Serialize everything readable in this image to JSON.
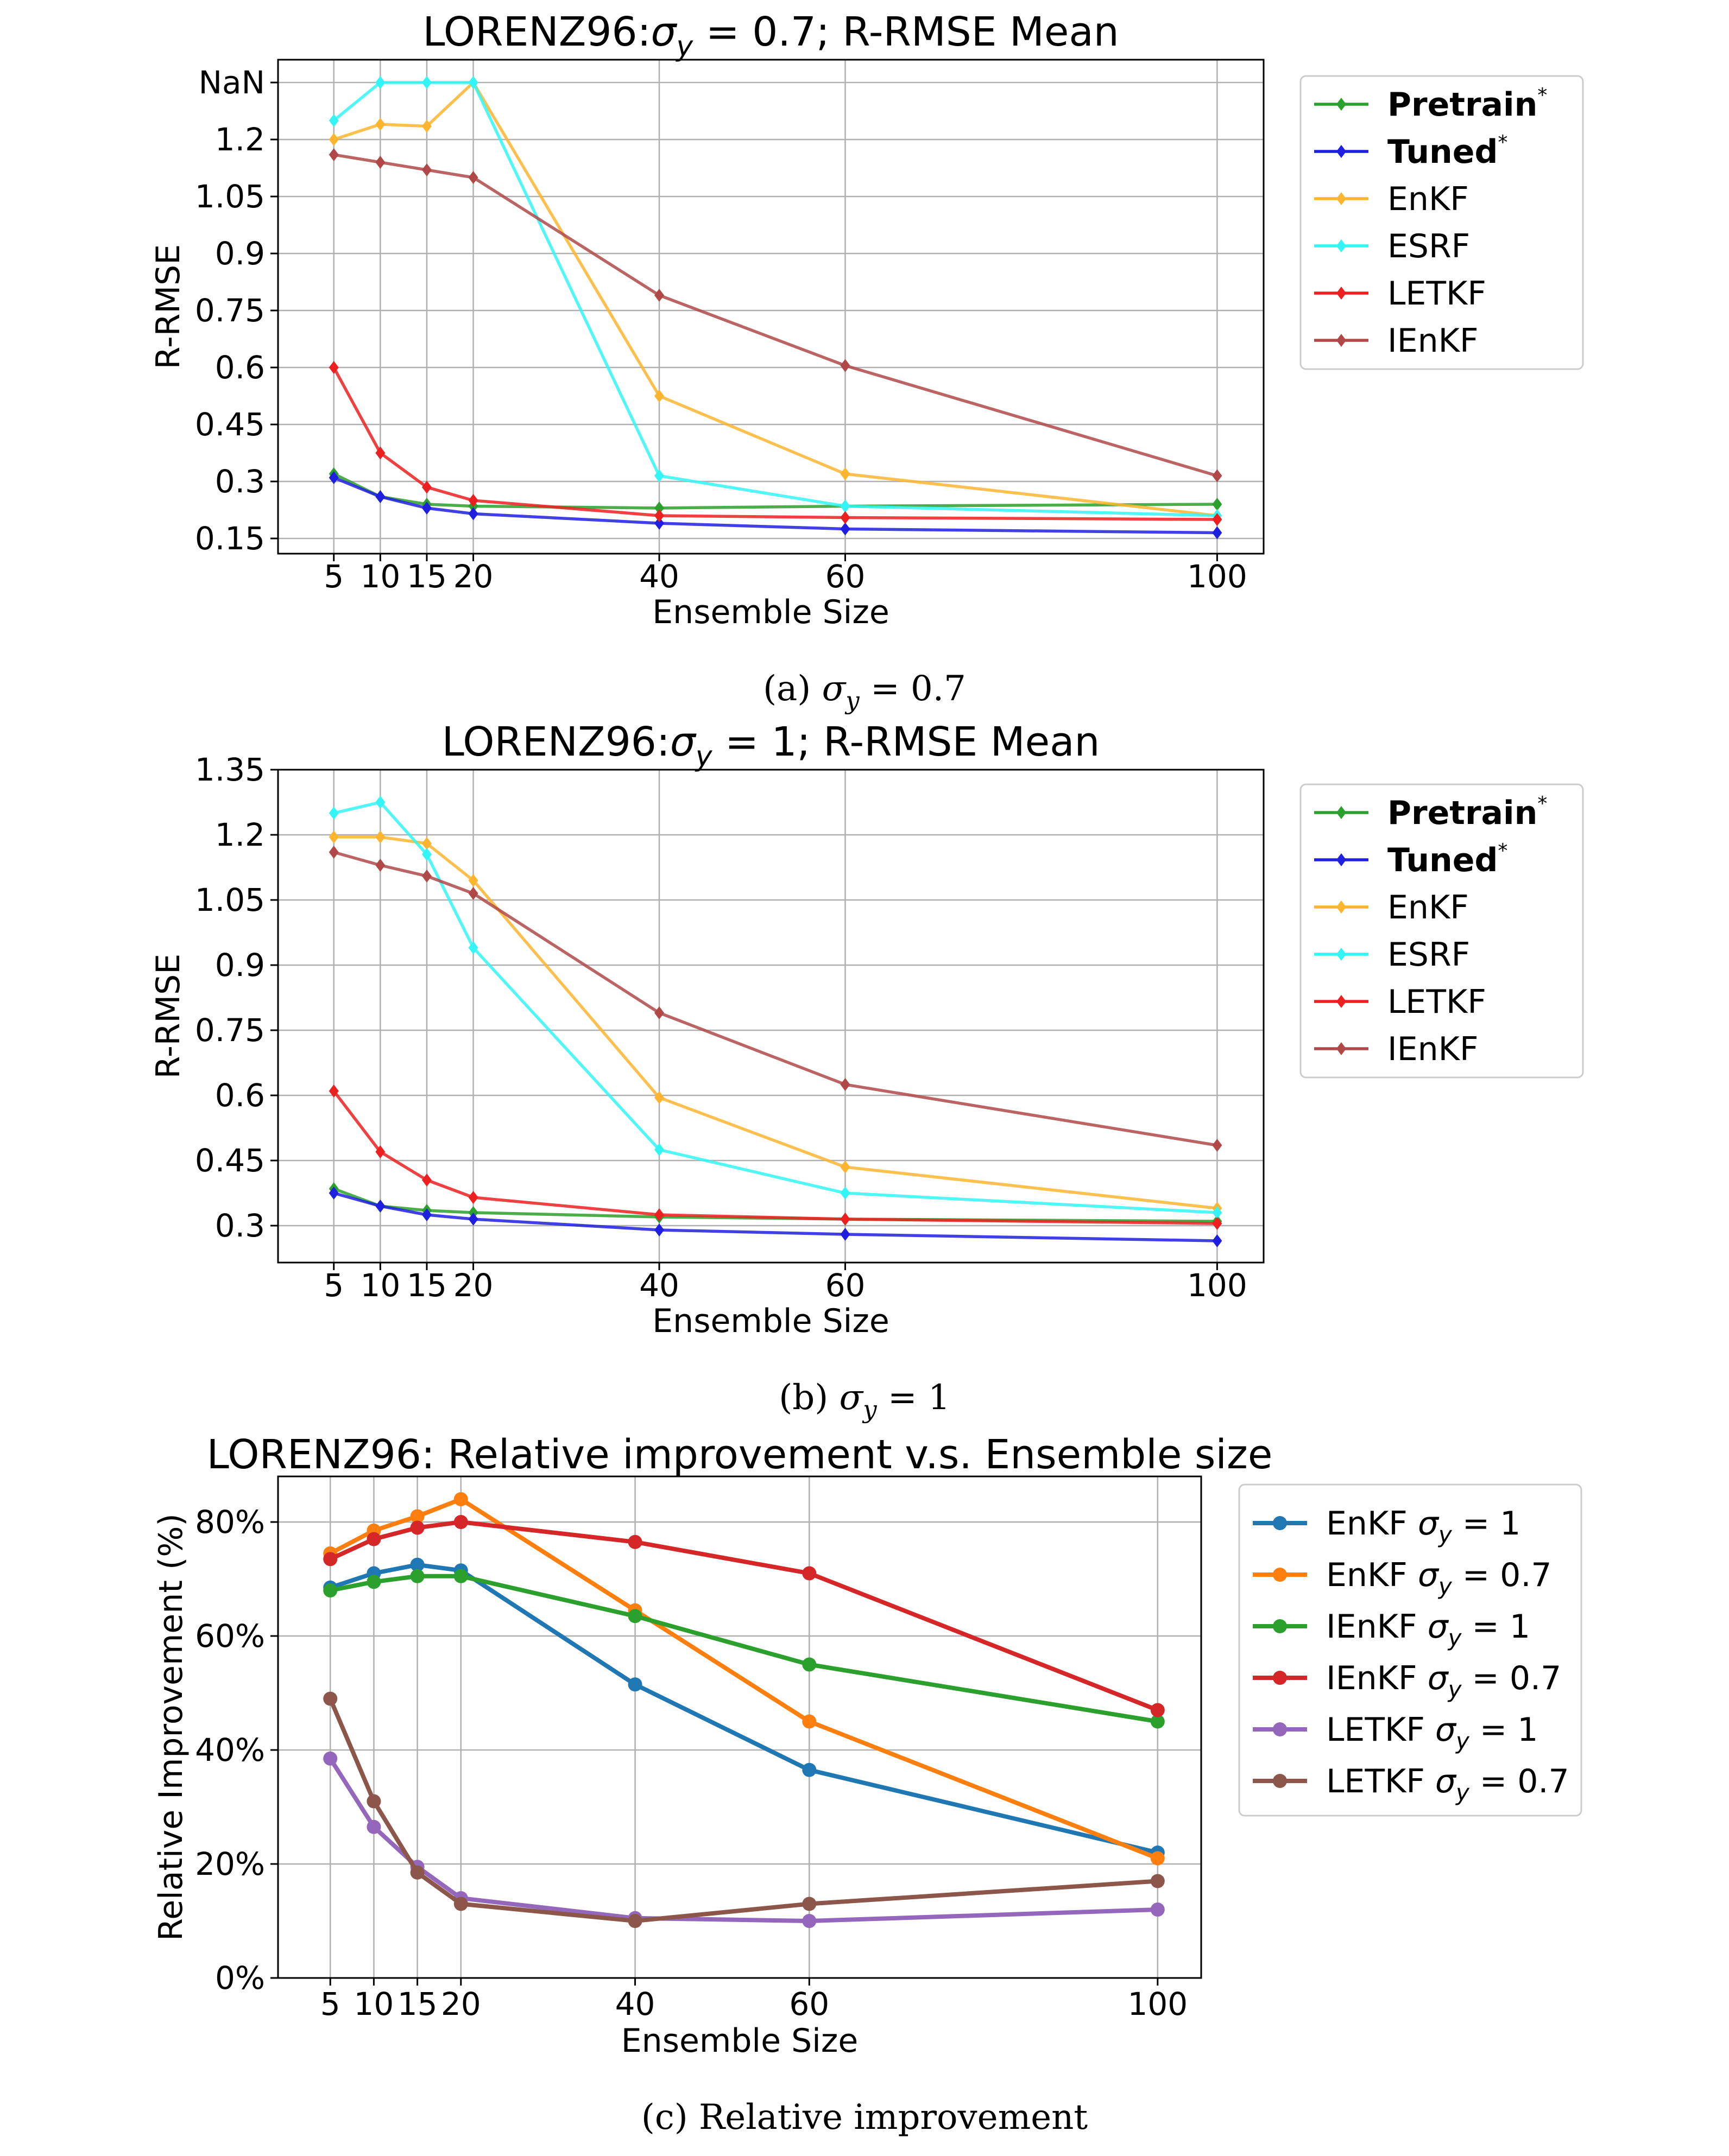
{
  "colors": {
    "pretrain": "#2ca02c",
    "tuned": "#1f1fe0",
    "enkf": "#fdb52f",
    "esrf": "#33f5f5",
    "letkf": "#ec2020",
    "ienkf": "#b04848",
    "c_blue": "#1f77b4",
    "c_orange": "#ff7f0e",
    "c_green": "#2ca02c",
    "c_red": "#d62728",
    "c_purple": "#9467bd",
    "c_brown": "#8c564b"
  },
  "chart_data": [
    {
      "id": "a",
      "type": "line",
      "title": "LORENZ96:σ_y = 0.7; R-RMSE Mean",
      "title_parts": [
        "LORENZ96:",
        "σ",
        "y",
        " = 0.7; R-RMSE Mean"
      ],
      "caption": "(a) σ_y = 0.7",
      "caption_parts": [
        "(a) ",
        "σ",
        "y",
        " = 0.7"
      ],
      "xlabel": "Ensemble Size",
      "ylabel": "R-RMSE",
      "x": [
        5,
        10,
        15,
        20,
        40,
        60,
        100
      ],
      "xlim": [
        -1,
        105
      ],
      "ylim": [
        0.11,
        1.41
      ],
      "yticks": [
        0.15,
        0.3,
        0.45,
        0.6,
        0.75,
        0.9,
        1.05,
        1.2,
        1.35
      ],
      "ytick_labels": [
        "0.15",
        "0.3",
        "0.45",
        "0.6",
        "0.75",
        "0.9",
        "1.05",
        "1.2",
        "NaN"
      ],
      "series": [
        {
          "name": "Pretrain",
          "sup": "*",
          "bold": true,
          "color_key": "pretrain",
          "marker": "diamond",
          "values": [
            0.32,
            0.26,
            0.24,
            0.235,
            0.23,
            0.235,
            0.24
          ]
        },
        {
          "name": "Tuned",
          "sup": "*",
          "bold": true,
          "color_key": "tuned",
          "marker": "diamond",
          "values": [
            0.31,
            0.26,
            0.23,
            0.215,
            0.19,
            0.175,
            0.165
          ]
        },
        {
          "name": "EnKF",
          "color_key": "enkf",
          "marker": "diamond",
          "values": [
            1.2,
            1.24,
            1.235,
            1.35,
            0.525,
            0.32,
            0.21
          ]
        },
        {
          "name": "ESRF",
          "color_key": "esrf",
          "marker": "diamond",
          "values": [
            1.25,
            1.35,
            1.35,
            1.35,
            0.315,
            0.235,
            0.21
          ]
        },
        {
          "name": "LETKF",
          "color_key": "letkf",
          "marker": "diamond",
          "values": [
            0.6,
            0.375,
            0.285,
            0.25,
            0.21,
            0.205,
            0.2
          ]
        },
        {
          "name": "IEnKF",
          "color_key": "ienkf",
          "marker": "diamond",
          "values": [
            1.16,
            1.14,
            1.12,
            1.1,
            0.79,
            0.605,
            0.315
          ]
        }
      ]
    },
    {
      "id": "b",
      "type": "line",
      "title": "LORENZ96:σ_y = 1; R-RMSE Mean",
      "title_parts": [
        "LORENZ96:",
        "σ",
        "y",
        " = 1; R-RMSE Mean"
      ],
      "caption": "(b) σ_y = 1",
      "caption_parts": [
        "(b) ",
        "σ",
        "y",
        " = 1"
      ],
      "xlabel": "Ensemble Size",
      "ylabel": "R-RMSE",
      "x": [
        5,
        10,
        15,
        20,
        40,
        60,
        100
      ],
      "xlim": [
        -1,
        105
      ],
      "ylim": [
        0.215,
        1.35
      ],
      "yticks": [
        0.3,
        0.45,
        0.6,
        0.75,
        0.9,
        1.05,
        1.2,
        1.35
      ],
      "ytick_labels": [
        "0.3",
        "0.45",
        "0.6",
        "0.75",
        "0.9",
        "1.05",
        "1.2",
        "1.35"
      ],
      "series": [
        {
          "name": "Pretrain",
          "sup": "*",
          "bold": true,
          "color_key": "pretrain",
          "marker": "diamond",
          "values": [
            0.385,
            0.345,
            0.335,
            0.33,
            0.32,
            0.315,
            0.31
          ]
        },
        {
          "name": "Tuned",
          "sup": "*",
          "bold": true,
          "color_key": "tuned",
          "marker": "diamond",
          "values": [
            0.375,
            0.345,
            0.325,
            0.315,
            0.29,
            0.28,
            0.265
          ]
        },
        {
          "name": "EnKF",
          "color_key": "enkf",
          "marker": "diamond",
          "values": [
            1.195,
            1.195,
            1.18,
            1.095,
            0.595,
            0.435,
            0.34
          ]
        },
        {
          "name": "ESRF",
          "color_key": "esrf",
          "marker": "diamond",
          "values": [
            1.25,
            1.275,
            1.155,
            0.94,
            0.475,
            0.375,
            0.33
          ]
        },
        {
          "name": "LETKF",
          "color_key": "letkf",
          "marker": "diamond",
          "values": [
            0.61,
            0.47,
            0.405,
            0.365,
            0.325,
            0.315,
            0.305
          ]
        },
        {
          "name": "IEnKF",
          "color_key": "ienkf",
          "marker": "diamond",
          "values": [
            1.16,
            1.13,
            1.105,
            1.065,
            0.79,
            0.625,
            0.485
          ]
        }
      ]
    },
    {
      "id": "c",
      "type": "line",
      "title": "LORENZ96: Relative improvement v.s. Ensemble size",
      "title_parts": [
        "LORENZ96: Relative improvement v.s. Ensemble size"
      ],
      "caption": "(c) Relative improvement",
      "caption_parts": [
        "(c) Relative improvement"
      ],
      "xlabel": "Ensemble Size",
      "ylabel": "Relative Improvement (%)",
      "x": [
        5,
        10,
        15,
        20,
        40,
        60,
        100
      ],
      "xlim": [
        -1,
        105
      ],
      "ylim": [
        0,
        88
      ],
      "yticks": [
        0,
        20,
        40,
        60,
        80
      ],
      "ytick_labels": [
        "0%",
        "20%",
        "40%",
        "60%",
        "80%"
      ],
      "series": [
        {
          "name": "EnKF σ_y = 1",
          "label_parts": [
            "EnKF ",
            "σ",
            "y",
            " = 1"
          ],
          "color_key": "c_blue",
          "marker": "circle",
          "values": [
            68.5,
            71.0,
            72.5,
            71.5,
            51.5,
            36.5,
            22.0
          ]
        },
        {
          "name": "EnKF σ_y = 0.7",
          "label_parts": [
            "EnKF ",
            "σ",
            "y",
            " = 0.7"
          ],
          "color_key": "c_orange",
          "marker": "circle",
          "values": [
            74.5,
            78.5,
            81.0,
            84.0,
            64.5,
            45.0,
            21.0
          ]
        },
        {
          "name": "IEnKF σ_y = 1",
          "label_parts": [
            "IEnKF ",
            "σ",
            "y",
            " = 1"
          ],
          "color_key": "c_green",
          "marker": "circle",
          "values": [
            68.0,
            69.5,
            70.5,
            70.5,
            63.5,
            55.0,
            45.0
          ]
        },
        {
          "name": "IEnKF σ_y = 0.7",
          "label_parts": [
            "IEnKF ",
            "σ",
            "y",
            " = 0.7"
          ],
          "color_key": "c_red",
          "marker": "circle",
          "values": [
            73.5,
            77.0,
            79.0,
            80.0,
            76.5,
            71.0,
            47.0
          ]
        },
        {
          "name": "LETKF σ_y = 1",
          "label_parts": [
            "LETKF ",
            "σ",
            "y",
            " = 1"
          ],
          "color_key": "c_purple",
          "marker": "circle",
          "values": [
            38.5,
            26.5,
            19.5,
            14.0,
            10.5,
            10.0,
            12.0
          ]
        },
        {
          "name": "LETKF σ_y = 0.7",
          "label_parts": [
            "LETKF ",
            "σ",
            "y",
            " = 0.7"
          ],
          "color_key": "c_brown",
          "marker": "circle",
          "values": [
            49.0,
            31.0,
            18.5,
            13.0,
            10.0,
            13.0,
            17.0
          ]
        }
      ]
    }
  ]
}
